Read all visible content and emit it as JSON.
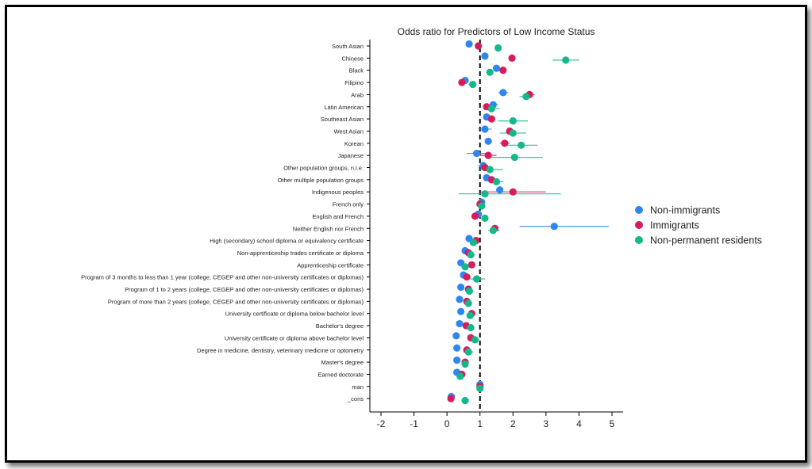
{
  "chart_data": {
    "type": "scatter",
    "subtype": "coefficient plot with confidence intervals",
    "title": "Odds ratio for Predictors of Low Income Status",
    "xlabel": "",
    "ylabel": "",
    "xlim": [
      -2,
      5
    ],
    "xticks": [
      "-2",
      "-1",
      "0",
      "1",
      "2",
      "3",
      "4",
      "5"
    ],
    "reference_line": 1,
    "legend_position": "right",
    "categories": [
      "South Asian",
      "Chinese",
      "Black",
      "Filipino",
      "Arab",
      "Latin American",
      "Southeast Asian",
      "West Asian",
      "Korean",
      "Japanese",
      "Other population groups, n.i.e.",
      "Other multiple population groups",
      "Indigenous peoples",
      "French only",
      "English and French",
      "Neither English nor French",
      "High (secondary) school diploma or equivalency certificate",
      "Non-apprenticeship trades certificate or diploma",
      "Apprenticeship certificate",
      "Program of 3 months to less than 1 year (college, CEGEP and other non-university certificates or diplomas)",
      "Program of 1 to 2 years (college, CEGEP and other non-university certificates or diplomas)",
      "Program of more than 2 years (college, CEGEP and other non-university certificates or diplomas)",
      "University certificate or diploma below bachelor level",
      "Bachelor's degree",
      "University certificate or diploma above bachelor level",
      "Degree in medicine, dentistry, veterinary medicine or optometry",
      "Master's degree",
      "Earned doctorate",
      "man",
      "_cons"
    ],
    "series": [
      {
        "name": "Non-immigrants",
        "color": "#2E86F0",
        "values": [
          0.67,
          1.15,
          1.5,
          0.55,
          1.7,
          1.4,
          1.2,
          1.15,
          1.25,
          0.9,
          1.1,
          1.2,
          1.6,
          1.05,
          0.95,
          3.25,
          0.67,
          0.55,
          0.42,
          0.5,
          0.42,
          0.38,
          0.42,
          0.38,
          0.28,
          0.3,
          0.3,
          0.3,
          1.0,
          0.13
        ],
        "ci_low": [
          0.6,
          1.05,
          1.4,
          0.5,
          1.55,
          1.25,
          1.1,
          0.95,
          1.15,
          0.6,
          0.95,
          1.1,
          1.5,
          1.0,
          0.9,
          2.2,
          0.62,
          0.5,
          0.38,
          0.45,
          0.38,
          0.34,
          0.38,
          0.34,
          0.24,
          0.26,
          0.26,
          0.26,
          0.98,
          0.1
        ],
        "ci_high": [
          0.75,
          1.25,
          1.6,
          0.6,
          1.85,
          1.55,
          1.3,
          1.35,
          1.35,
          1.2,
          1.25,
          1.3,
          1.7,
          1.1,
          1.0,
          4.9,
          0.72,
          0.6,
          0.46,
          0.55,
          0.46,
          0.42,
          0.46,
          0.42,
          0.32,
          0.34,
          0.34,
          0.34,
          1.02,
          0.16
        ]
      },
      {
        "name": "Immigrants",
        "color": "#D81B5A",
        "values": [
          0.95,
          1.97,
          1.7,
          0.45,
          2.5,
          1.2,
          1.35,
          1.9,
          1.75,
          1.25,
          1.15,
          1.35,
          2.0,
          1.0,
          0.85,
          1.45,
          0.88,
          0.65,
          0.75,
          0.6,
          0.65,
          0.6,
          0.75,
          0.58,
          0.72,
          0.6,
          0.55,
          0.45,
          1.0,
          0.12
        ],
        "ci_low": [
          0.9,
          1.9,
          1.6,
          0.4,
          2.35,
          1.1,
          1.25,
          1.8,
          1.6,
          1.0,
          1.05,
          1.25,
          1.0,
          0.95,
          0.8,
          1.35,
          0.84,
          0.6,
          0.7,
          0.55,
          0.6,
          0.56,
          0.7,
          0.54,
          0.67,
          0.56,
          0.51,
          0.4,
          0.97,
          0.1
        ],
        "ci_high": [
          1.0,
          2.05,
          1.8,
          0.5,
          2.65,
          1.3,
          1.45,
          2.0,
          1.9,
          1.5,
          1.25,
          1.45,
          3.0,
          1.05,
          0.9,
          1.55,
          0.92,
          0.7,
          0.8,
          0.65,
          0.7,
          0.64,
          0.8,
          0.62,
          0.77,
          0.64,
          0.59,
          0.5,
          1.03,
          0.14
        ]
      },
      {
        "name": "Non-permanent residents",
        "color": "#14B88A",
        "values": [
          1.55,
          3.6,
          1.3,
          0.78,
          2.4,
          1.35,
          2.0,
          2.0,
          2.25,
          2.05,
          1.3,
          1.5,
          1.15,
          1.05,
          1.15,
          1.4,
          0.8,
          0.72,
          0.55,
          0.9,
          0.68,
          0.65,
          0.7,
          0.72,
          0.85,
          0.65,
          0.55,
          0.4,
          1.0,
          0.55
        ],
        "ci_low": [
          1.45,
          3.2,
          1.2,
          0.65,
          2.2,
          1.1,
          1.55,
          1.6,
          1.75,
          1.3,
          0.95,
          1.3,
          0.35,
          0.95,
          1.05,
          1.25,
          0.72,
          0.6,
          0.45,
          0.7,
          0.55,
          0.55,
          0.6,
          0.62,
          0.72,
          0.5,
          0.45,
          0.32,
          0.96,
          0.45
        ],
        "ci_high": [
          1.65,
          4.0,
          1.4,
          0.9,
          2.6,
          1.6,
          2.45,
          2.4,
          2.75,
          2.9,
          1.7,
          1.7,
          3.45,
          1.15,
          1.25,
          1.6,
          0.88,
          0.84,
          0.65,
          1.15,
          0.8,
          0.75,
          0.8,
          0.82,
          0.98,
          0.8,
          0.65,
          0.48,
          1.04,
          0.65
        ]
      }
    ]
  }
}
